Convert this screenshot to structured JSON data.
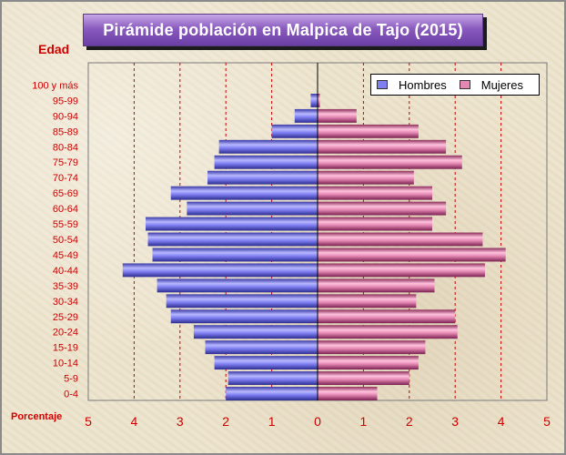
{
  "title": "Pirámide población en Malpica de Tajo (2015)",
  "y_axis_title": "Edad",
  "x_axis_title": "Porcentaje",
  "colors": {
    "male": "#7f7ff2",
    "female": "#e488b3",
    "grid": "#cc0000",
    "tick_text": "#cc0000"
  },
  "chart_data": {
    "type": "bar",
    "orientation": "horizontal-population-pyramid",
    "categories": [
      "0-4",
      "5-9",
      "10-14",
      "15-19",
      "20-24",
      "25-29",
      "30-34",
      "35-39",
      "40-44",
      "45-49",
      "50-54",
      "55-59",
      "60-64",
      "65-69",
      "70-74",
      "75-79",
      "80-84",
      "85-89",
      "90-94",
      "95-99",
      "100 y más"
    ],
    "series": [
      {
        "name": "Hombres",
        "values": [
          2.0,
          1.95,
          2.25,
          2.45,
          2.7,
          3.2,
          3.3,
          3.5,
          4.25,
          3.6,
          3.7,
          3.75,
          2.85,
          3.2,
          2.4,
          2.25,
          2.15,
          1.0,
          0.5,
          0.15,
          0.0
        ]
      },
      {
        "name": "Mujeres",
        "values": [
          1.3,
          2.0,
          2.2,
          2.35,
          3.05,
          3.0,
          2.15,
          2.55,
          3.65,
          4.1,
          3.6,
          2.5,
          2.8,
          2.5,
          2.1,
          3.15,
          2.8,
          2.2,
          0.85,
          0.05,
          0.0
        ]
      }
    ],
    "x_ticks": [
      "5",
      "4",
      "3",
      "2",
      "1",
      "0",
      "1",
      "2",
      "3",
      "4",
      "5"
    ],
    "xlim": [
      -5,
      5
    ],
    "grid": true,
    "legend_position": "top-right"
  }
}
